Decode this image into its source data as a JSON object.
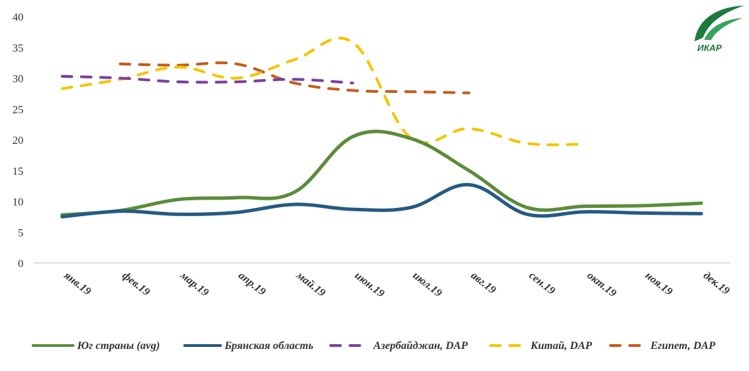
{
  "chart_data": {
    "type": "line",
    "categories": [
      "янв.19",
      "фев.19",
      "мар.19",
      "апр.19",
      "май.19",
      "июн.19",
      "июл.19",
      "авг.19",
      "сен.19",
      "окт.19",
      "ноя.19",
      "дек.19"
    ],
    "ylim": [
      0,
      40
    ],
    "yticks": [
      0,
      5,
      10,
      15,
      20,
      25,
      30,
      35,
      40
    ],
    "grid": false,
    "legend_position": "bottom",
    "series": [
      {
        "name": "Юг страны (avg)",
        "color": "#5b8c3a",
        "dashed": false,
        "values": [
          7.8,
          8.5,
          10.3,
          10.6,
          11.5,
          20.5,
          20.2,
          15.0,
          9.0,
          9.2,
          9.3,
          9.7
        ]
      },
      {
        "name": "Брянская область",
        "color": "#255a82",
        "dashed": false,
        "values": [
          7.5,
          8.4,
          7.9,
          8.2,
          9.5,
          8.7,
          9.0,
          12.7,
          7.9,
          8.3,
          8.1,
          8.0
        ]
      },
      {
        "name": "Азербайджан, DAP",
        "color": "#7b3fa0",
        "dashed": true,
        "values": [
          30.3,
          30.0,
          29.4,
          29.4,
          29.8,
          29.2,
          null,
          null,
          null,
          null,
          null,
          null
        ]
      },
      {
        "name": "Китай, DAP",
        "color": "#f5c400",
        "dashed": true,
        "values": [
          28.3,
          29.8,
          31.8,
          30.0,
          33.0,
          35.8,
          20.3,
          21.8,
          19.4,
          19.3,
          null,
          null
        ]
      },
      {
        "name": "Египет, DAP",
        "color": "#c45d1a",
        "dashed": true,
        "values": [
          null,
          32.3,
          32.1,
          32.3,
          29.2,
          28.0,
          27.8,
          27.6,
          null,
          null,
          null,
          null
        ]
      }
    ]
  },
  "logo": {
    "text": "ИКАР",
    "color": "#1e7a3e"
  }
}
